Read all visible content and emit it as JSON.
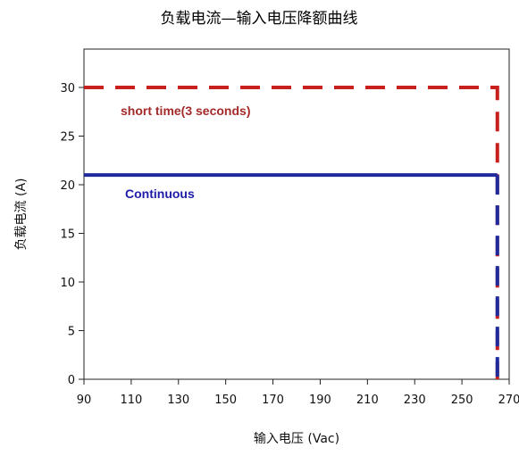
{
  "chart_data": {
    "type": "line",
    "title": "负载电流—输入电压降额曲线",
    "xlabel": "输入电压 (Vac)",
    "ylabel": "负载电流 (A)",
    "xlim": [
      90,
      270
    ],
    "ylim": [
      0,
      30
    ],
    "x_ticks": [
      "90",
      "110",
      "130",
      "150",
      "170",
      "190",
      "210",
      "230",
      "250",
      "270"
    ],
    "y_ticks": [
      "0",
      "5",
      "10",
      "15",
      "20",
      "25",
      "30"
    ],
    "grid": false,
    "series": [
      {
        "name": "short time(3 seconds)",
        "color": "#c8201d",
        "style": "dashed",
        "points": [
          [
            90,
            30
          ],
          [
            265,
            30
          ],
          [
            265,
            0
          ]
        ]
      },
      {
        "name": "Continuous",
        "color": "#1f2a9c",
        "style": "solid-then-dashed",
        "points": [
          [
            90,
            21
          ],
          [
            265,
            21
          ],
          [
            265,
            0
          ]
        ]
      }
    ],
    "annotations": [
      {
        "text": "short time(3 seconds)",
        "color": "#a52a2a"
      },
      {
        "text": "Continuous",
        "color": "#1c1ca8"
      }
    ]
  }
}
